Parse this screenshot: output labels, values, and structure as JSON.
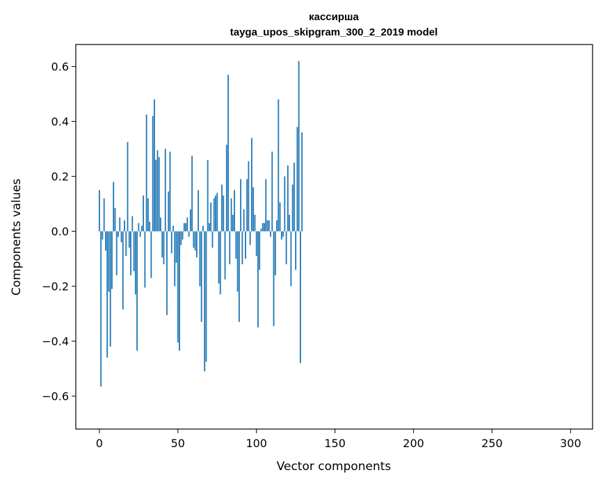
{
  "chart_data": {
    "type": "bar",
    "title": "кассирша",
    "subtitle": "tayga_upos_skipgram_300_2_2019 model",
    "xlabel": "Vector components",
    "ylabel": "Components values",
    "xlim": [
      -15,
      314
    ],
    "ylim": [
      -0.72,
      0.68
    ],
    "xticks": [
      0,
      50,
      100,
      150,
      200,
      250,
      300
    ],
    "yticks": [
      -0.6,
      -0.4,
      -0.2,
      0.0,
      0.2,
      0.4,
      0.6
    ],
    "ytick_labels": [
      "−0.6",
      "−0.4",
      "−0.2",
      "0.0",
      "0.2",
      "0.4",
      "0.6"
    ],
    "xtick_labels": [
      "0",
      "50",
      "100",
      "150",
      "200",
      "250",
      "300"
    ],
    "bar_color": "#1f77b4",
    "grid": false,
    "values": [
      0.15,
      -0.565,
      -0.03,
      0.12,
      -0.07,
      -0.46,
      -0.22,
      -0.42,
      -0.21,
      0.18,
      0.085,
      -0.16,
      -0.02,
      0.05,
      -0.04,
      -0.285,
      0.04,
      -0.09,
      0.325,
      -0.06,
      -0.16,
      0.055,
      -0.145,
      -0.23,
      -0.435,
      0.03,
      -0.02,
      0.02,
      0.13,
      -0.205,
      0.425,
      0.12,
      0.035,
      -0.17,
      0.42,
      0.48,
      0.26,
      0.295,
      0.27,
      0.05,
      -0.095,
      -0.12,
      0.3,
      -0.305,
      0.145,
      0.29,
      -0.08,
      0.02,
      -0.2,
      -0.115,
      -0.405,
      -0.435,
      -0.05,
      -0.03,
      0.03,
      0.03,
      0.05,
      -0.02,
      0.08,
      0.275,
      -0.06,
      -0.07,
      -0.095,
      0.15,
      -0.2,
      -0.33,
      0.02,
      -0.51,
      -0.475,
      0.26,
      0.03,
      0.105,
      -0.06,
      0.12,
      0.13,
      0.14,
      -0.19,
      -0.23,
      0.17,
      0.13,
      -0.175,
      0.315,
      0.57,
      -0.12,
      0.12,
      0.06,
      0.15,
      -0.1,
      -0.22,
      -0.33,
      0.19,
      -0.12,
      0.08,
      -0.1,
      0.19,
      0.255,
      -0.05,
      0.34,
      0.16,
      0.06,
      -0.09,
      -0.35,
      -0.14,
      0.01,
      0.03,
      0.03,
      0.19,
      0.04,
      0.04,
      -0.02,
      0.29,
      -0.345,
      -0.16,
      0.04,
      0.48,
      0.105,
      -0.03,
      -0.02,
      0.2,
      -0.12,
      0.24,
      0.06,
      -0.2,
      0.17,
      0.25,
      -0.14,
      0.38,
      0.62,
      -0.48,
      0.36
    ]
  }
}
